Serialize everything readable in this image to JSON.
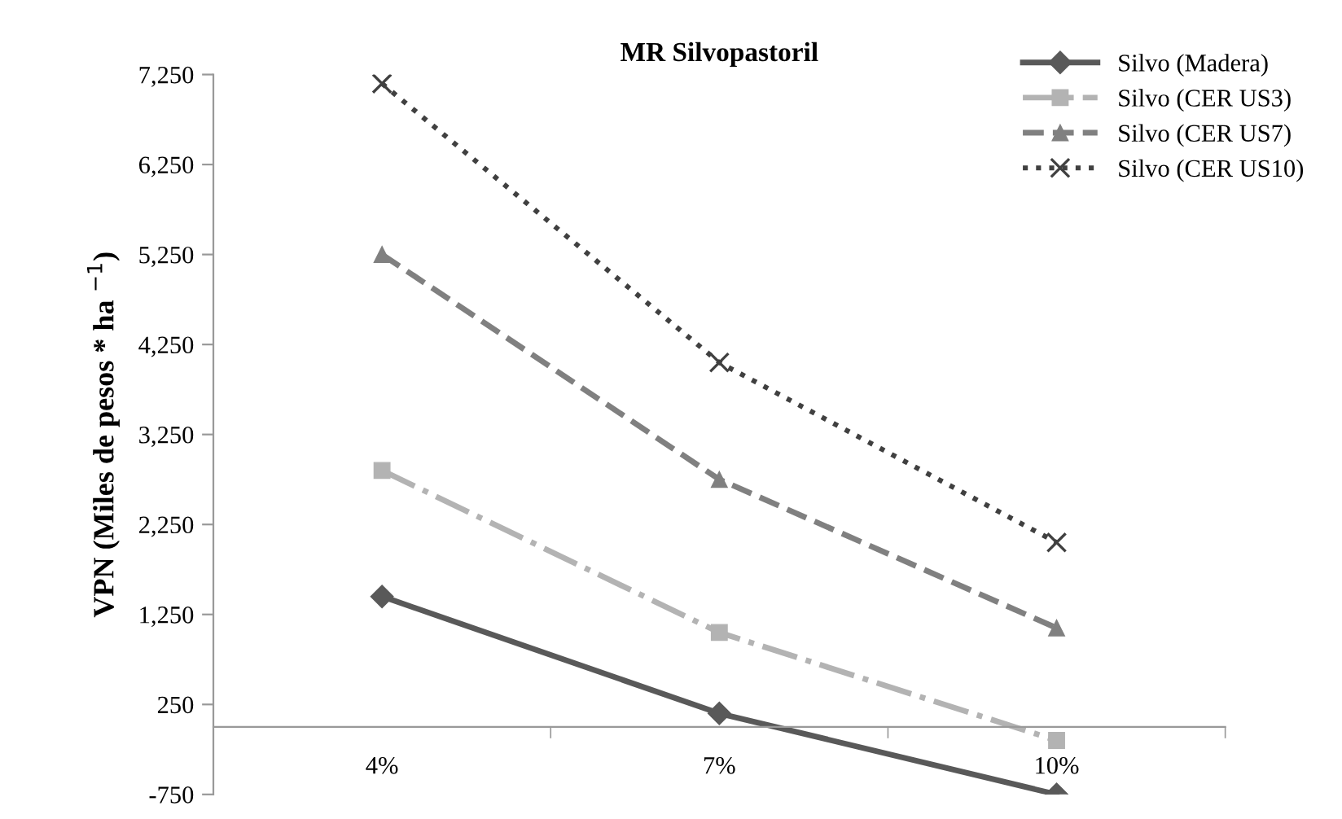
{
  "chart_data": {
    "type": "line",
    "title": "MR Silvopastoril",
    "ylabel": "VPN (Miles de pesos * ha $^{−1}$)",
    "categories": [
      "4%",
      "7%",
      "10%"
    ],
    "series": [
      {
        "name": "Silvo (Madera)",
        "color": "#595959",
        "values": [
          1450,
          150,
          -750
        ],
        "marker": "diamond",
        "line_style": "solid"
      },
      {
        "name": "Silvo (CER US3)",
        "color": "#b3b3b3",
        "values": [
          2850,
          1050,
          -150
        ],
        "marker": "square",
        "line_style": "dashdot"
      },
      {
        "name": "Silvo (CER US7)",
        "color": "#808080",
        "values": [
          5250,
          2750,
          1100
        ],
        "marker": "triangle",
        "line_style": "dashed"
      },
      {
        "name": "Silvo (CER US10)",
        "color": "#404040",
        "values": [
          7150,
          4050,
          2050
        ],
        "marker": "cross",
        "line_style": "dotted"
      }
    ],
    "ylim": [
      -750,
      7250
    ],
    "yticks": [
      {
        "value": -750,
        "label": "-750"
      },
      250,
      {
        "value": 1250,
        "label": "1,250"
      },
      {
        "value": 2250,
        "label": "2,250"
      },
      {
        "value": 3250,
        "label": "3,250"
      },
      {
        "value": 4250,
        "label": "4,250"
      },
      {
        "value": 5250,
        "label": "5,250"
      },
      {
        "value": 6250,
        "label": "6,250"
      },
      {
        "value": 7250,
        "label": "7,250"
      }
    ],
    "grid": false,
    "legend": "top right"
  }
}
